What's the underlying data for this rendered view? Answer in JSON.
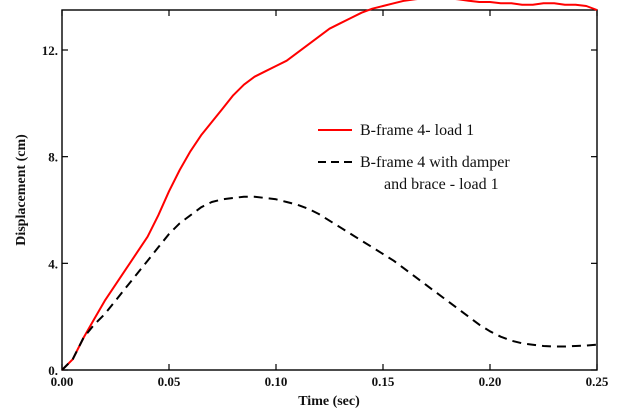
{
  "chart_data": {
    "type": "line",
    "xlabel": "Time (sec)",
    "ylabel": "Displacement (cm)",
    "xlim": [
      0,
      0.25
    ],
    "ylim": [
      0,
      13.5
    ],
    "x_ticks": [
      0,
      0.05,
      0.1,
      0.15,
      0.2,
      0.25
    ],
    "x_tick_labels": [
      "0.00",
      "0.05",
      "0.10",
      "0.15",
      "0.20",
      "0.25"
    ],
    "y_ticks": [
      0,
      4,
      8,
      12
    ],
    "y_tick_labels": [
      "0.",
      "4.",
      "8.",
      "12."
    ],
    "grid": false,
    "legend_position": "center-right",
    "series": [
      {
        "name": "B-frame 4- load 1",
        "color": "#ff0000",
        "style": "solid",
        "x": [
          0,
          0.005,
          0.01,
          0.015,
          0.02,
          0.025,
          0.03,
          0.035,
          0.04,
          0.045,
          0.05,
          0.055,
          0.06,
          0.065,
          0.07,
          0.075,
          0.08,
          0.085,
          0.09,
          0.095,
          0.1,
          0.105,
          0.11,
          0.115,
          0.12,
          0.125,
          0.13,
          0.135,
          0.14,
          0.145,
          0.15,
          0.155,
          0.16,
          0.165,
          0.17,
          0.175,
          0.18,
          0.185,
          0.19,
          0.195,
          0.2,
          0.205,
          0.21,
          0.215,
          0.22,
          0.225,
          0.23,
          0.235,
          0.24,
          0.245,
          0.25
        ],
        "y": [
          0.0,
          0.4,
          1.2,
          1.9,
          2.6,
          3.2,
          3.8,
          4.4,
          5.0,
          5.8,
          6.7,
          7.5,
          8.2,
          8.8,
          9.3,
          9.8,
          10.3,
          10.7,
          11.0,
          11.2,
          11.4,
          11.6,
          11.9,
          12.2,
          12.5,
          12.8,
          13.0,
          13.2,
          13.4,
          13.55,
          13.65,
          13.75,
          13.85,
          13.9,
          13.95,
          14.0,
          13.95,
          13.9,
          13.85,
          13.8,
          13.8,
          13.75,
          13.75,
          13.7,
          13.7,
          13.75,
          13.75,
          13.7,
          13.7,
          13.65,
          13.5
        ]
      },
      {
        "name": "B-frame 4 with damper\nand brace - load 1",
        "legend_lines": [
          "B-frame 4 with damper",
          "and brace - load 1"
        ],
        "color": "#000000",
        "style": "dashed",
        "x": [
          0,
          0.005,
          0.01,
          0.015,
          0.02,
          0.025,
          0.03,
          0.035,
          0.04,
          0.045,
          0.05,
          0.055,
          0.06,
          0.065,
          0.07,
          0.075,
          0.08,
          0.085,
          0.09,
          0.095,
          0.1,
          0.105,
          0.11,
          0.115,
          0.12,
          0.125,
          0.13,
          0.135,
          0.14,
          0.145,
          0.15,
          0.155,
          0.16,
          0.165,
          0.17,
          0.175,
          0.18,
          0.185,
          0.19,
          0.195,
          0.2,
          0.205,
          0.21,
          0.215,
          0.22,
          0.225,
          0.23,
          0.235,
          0.24,
          0.245,
          0.25
        ],
        "y": [
          0.0,
          0.4,
          1.2,
          1.7,
          2.1,
          2.6,
          3.1,
          3.6,
          4.1,
          4.6,
          5.1,
          5.5,
          5.8,
          6.1,
          6.3,
          6.4,
          6.45,
          6.5,
          6.5,
          6.45,
          6.4,
          6.3,
          6.2,
          6.05,
          5.85,
          5.6,
          5.35,
          5.1,
          4.85,
          4.6,
          4.35,
          4.1,
          3.8,
          3.5,
          3.2,
          2.9,
          2.6,
          2.3,
          2.0,
          1.7,
          1.45,
          1.25,
          1.1,
          1.0,
          0.95,
          0.9,
          0.88,
          0.88,
          0.9,
          0.92,
          0.95
        ]
      }
    ]
  }
}
